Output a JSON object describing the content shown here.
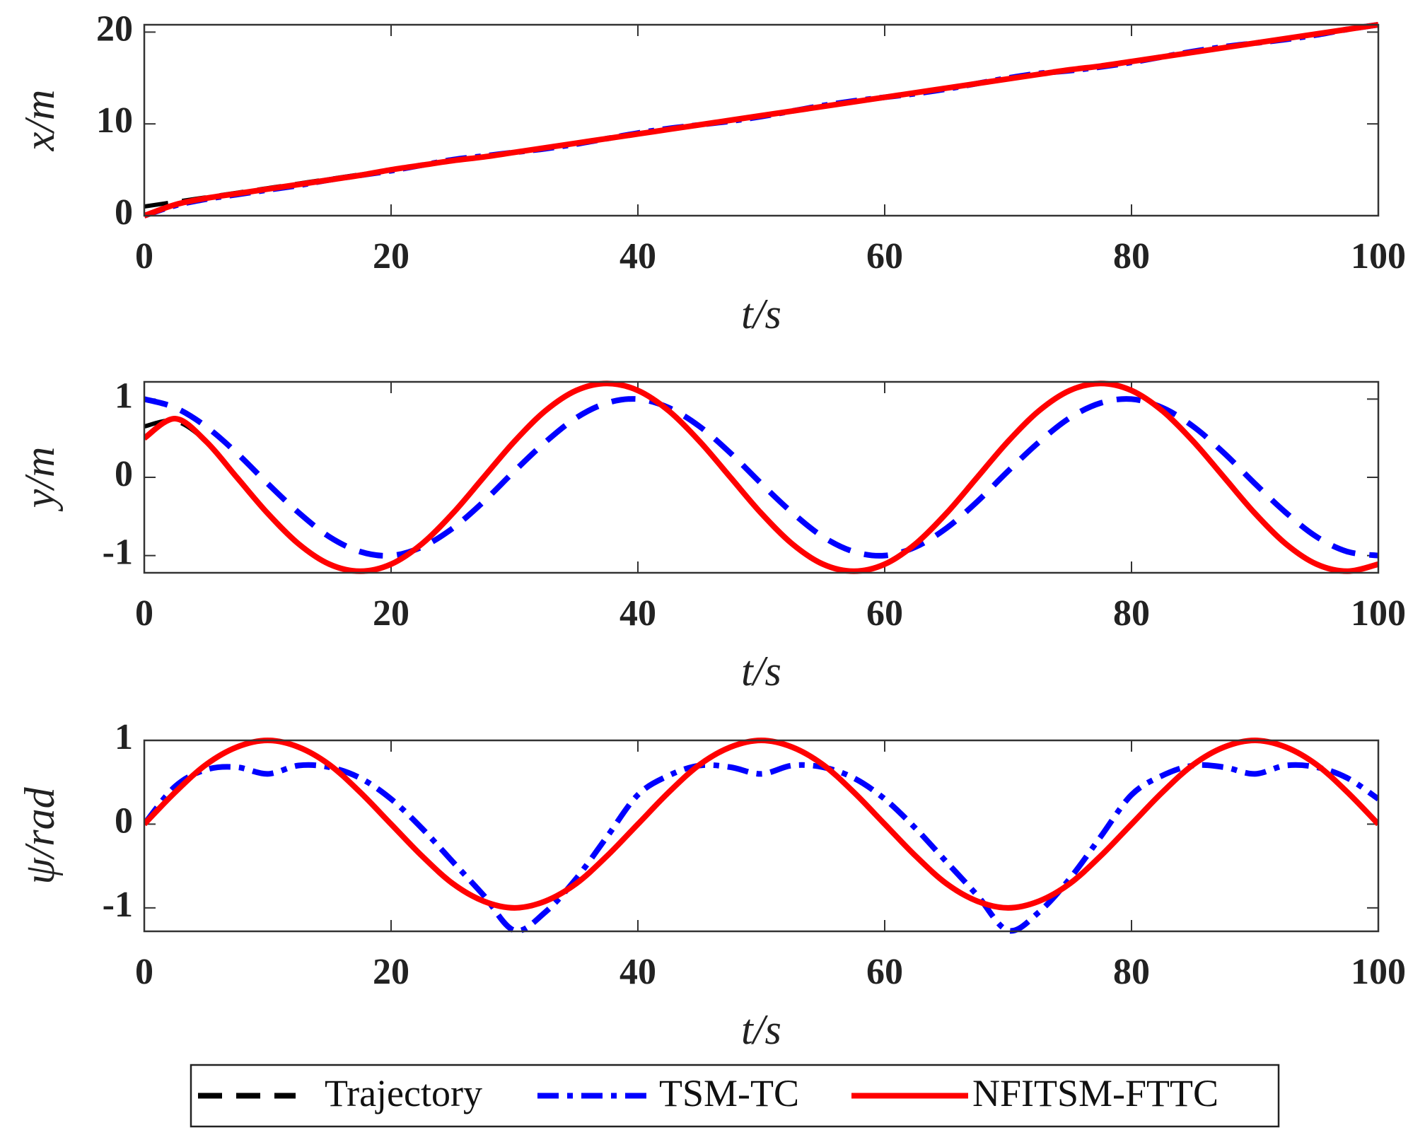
{
  "chart_data": [
    {
      "type": "line",
      "xlabel": "t/s",
      "ylabel": "x/m",
      "x": [
        0,
        2.5,
        5,
        7.5,
        10,
        12.5,
        15,
        17.5,
        20,
        22.5,
        25,
        27.5,
        30,
        32.5,
        35,
        37.5,
        40,
        42.5,
        45,
        47.5,
        50,
        52.5,
        55,
        57.5,
        60,
        62.5,
        65,
        67.5,
        70,
        72.5,
        75,
        77.5,
        80,
        82.5,
        85,
        87.5,
        90,
        92.5,
        95,
        97.5,
        100
      ],
      "xlim": [
        0,
        100
      ],
      "xticks": [
        0,
        20,
        40,
        60,
        80,
        100
      ],
      "ylim": [
        0,
        20.8
      ],
      "yticks": [
        0,
        10,
        20
      ],
      "legend": "below",
      "series": [
        {
          "name": "Trajectory",
          "color": "#000000",
          "style": "dashed",
          "values": [
            1,
            1.5,
            2,
            2.5,
            3,
            3.5,
            4,
            4.5,
            5,
            5.5,
            6,
            6.4,
            6.9,
            7.4,
            7.9,
            8.4,
            8.9,
            9.4,
            9.9,
            10.4,
            10.9,
            11.4,
            11.9,
            12.4,
            12.9,
            13.4,
            13.9,
            14.4,
            14.9,
            15.4,
            15.9,
            16.3,
            16.8,
            17.3,
            17.8,
            18.3,
            18.8,
            19.3,
            19.8,
            20.3,
            20.8
          ]
        },
        {
          "name": "TSM-TC",
          "color": "#0000ff",
          "style": "dashdot",
          "values": [
            0,
            1.1,
            1.8,
            2.3,
            2.8,
            3.3,
            3.9,
            4.4,
            4.9,
            5.5,
            6.1,
            6.5,
            6.9,
            7.3,
            7.8,
            8.4,
            9,
            9.5,
            9.9,
            10.3,
            10.8,
            11.4,
            12,
            12.5,
            12.9,
            13.3,
            13.8,
            14.4,
            15,
            15.5,
            15.8,
            16.2,
            16.7,
            17.3,
            17.9,
            18.4,
            18.8,
            19.2,
            19.7,
            20.3,
            20.8
          ]
        },
        {
          "name": "NFITSM-FTTC",
          "color": "#ff0000",
          "style": "solid",
          "values": [
            0,
            1.2,
            1.9,
            2.4,
            2.9,
            3.4,
            3.9,
            4.4,
            5,
            5.5,
            6,
            6.4,
            6.9,
            7.4,
            7.9,
            8.4,
            8.9,
            9.4,
            9.9,
            10.4,
            10.9,
            11.4,
            11.9,
            12.4,
            12.9,
            13.4,
            13.9,
            14.4,
            14.9,
            15.4,
            15.9,
            16.3,
            16.8,
            17.3,
            17.8,
            18.3,
            18.8,
            19.3,
            19.8,
            20.3,
            20.8
          ]
        }
      ]
    },
    {
      "type": "line",
      "xlabel": "t/s",
      "ylabel": "y/m",
      "x": [
        0,
        2.5,
        5,
        7.5,
        10,
        12.5,
        15,
        17.5,
        20,
        22.5,
        25,
        27.5,
        30,
        32.5,
        35,
        37.5,
        40,
        42.5,
        45,
        47.5,
        50,
        52.5,
        55,
        57.5,
        60,
        62.5,
        65,
        67.5,
        70,
        72.5,
        75,
        77.5,
        80,
        82.5,
        85,
        87.5,
        90,
        92.5,
        95,
        97.5,
        100
      ],
      "xlim": [
        0,
        100
      ],
      "xticks": [
        0,
        20,
        40,
        60,
        80,
        100
      ],
      "ylim": [
        -1.22,
        1.22
      ],
      "yticks": [
        -1,
        0,
        1
      ],
      "series": [
        {
          "name": "Trajectory",
          "color": "#000000",
          "style": "dashed",
          "values": [
            0.65,
            0.72,
            0.46,
            0,
            -0.46,
            -0.85,
            -1.11,
            -1.2,
            -1.11,
            -0.85,
            -0.46,
            0,
            0.46,
            0.85,
            1.11,
            1.2,
            1.11,
            0.85,
            0.46,
            0,
            -0.46,
            -0.85,
            -1.11,
            -1.2,
            -1.11,
            -0.85,
            -0.46,
            0,
            0.46,
            0.85,
            1.11,
            1.2,
            1.11,
            0.85,
            0.46,
            0,
            -0.46,
            -0.85,
            -1.11,
            -1.2,
            -1.11
          ]
        },
        {
          "name": "TSM-TC",
          "color": "#0000ff",
          "style": "dashed",
          "values": [
            1,
            0.89,
            0.65,
            0.31,
            -0.08,
            -0.45,
            -0.76,
            -0.95,
            -1,
            -0.89,
            -0.65,
            -0.31,
            0.08,
            0.45,
            0.76,
            0.95,
            1,
            0.89,
            0.65,
            0.31,
            -0.08,
            -0.45,
            -0.76,
            -0.95,
            -1,
            -0.89,
            -0.65,
            -0.31,
            0.08,
            0.45,
            0.76,
            0.95,
            1,
            0.89,
            0.65,
            0.31,
            -0.08,
            -0.45,
            -0.76,
            -0.95,
            -1
          ]
        },
        {
          "name": "NFITSM-FTTC",
          "color": "#ff0000",
          "style": "solid",
          "values": [
            0.5,
            0.75,
            0.46,
            0,
            -0.46,
            -0.85,
            -1.11,
            -1.2,
            -1.11,
            -0.85,
            -0.46,
            0,
            0.46,
            0.85,
            1.11,
            1.2,
            1.11,
            0.85,
            0.46,
            0,
            -0.46,
            -0.85,
            -1.11,
            -1.2,
            -1.11,
            -0.85,
            -0.46,
            0,
            0.46,
            0.85,
            1.11,
            1.2,
            1.11,
            0.85,
            0.46,
            0,
            -0.46,
            -0.85,
            -1.11,
            -1.2,
            -1.11
          ]
        }
      ]
    },
    {
      "type": "line",
      "xlabel": "t/s",
      "ylabel": "ψ/rad",
      "x": [
        0,
        2.5,
        5,
        7.5,
        10,
        12.5,
        15,
        17.5,
        20,
        22.5,
        25,
        27.5,
        30,
        32.5,
        35,
        37.5,
        40,
        42.5,
        45,
        47.5,
        50,
        52.5,
        55,
        57.5,
        60,
        62.5,
        65,
        67.5,
        70,
        72.5,
        75,
        77.5,
        80,
        82.5,
        85,
        87.5,
        90,
        92.5,
        95,
        97.5,
        100
      ],
      "xlim": [
        0,
        100
      ],
      "xticks": [
        0,
        20,
        40,
        60,
        80,
        100
      ],
      "ylim": [
        -1.28,
        1
      ],
      "yticks": [
        -1,
        0,
        1
      ],
      "series": [
        {
          "name": "Trajectory",
          "color": "#000000",
          "style": "dashed",
          "values": [
            0,
            0.38,
            0.71,
            0.92,
            1,
            0.92,
            0.71,
            0.38,
            0,
            -0.38,
            -0.71,
            -0.92,
            -1,
            -0.92,
            -0.71,
            -0.38,
            0,
            0.38,
            0.71,
            0.92,
            1,
            0.92,
            0.71,
            0.38,
            0,
            -0.38,
            -0.71,
            -0.92,
            -1,
            -0.92,
            -0.71,
            -0.38,
            0,
            0.38,
            0.71,
            0.92,
            1,
            0.92,
            0.71,
            0.38,
            0
          ]
        },
        {
          "name": "TSM-TC",
          "color": "#0000ff",
          "style": "dashdot",
          "values": [
            0,
            0.45,
            0.65,
            0.68,
            0.6,
            0.7,
            0.68,
            0.55,
            0.3,
            -0.05,
            -0.45,
            -0.85,
            -1.27,
            -1.05,
            -0.65,
            -0.15,
            0.35,
            0.58,
            0.7,
            0.68,
            0.6,
            0.7,
            0.68,
            0.55,
            0.3,
            -0.05,
            -0.45,
            -0.85,
            -1.27,
            -1.05,
            -0.65,
            -0.15,
            0.35,
            0.58,
            0.7,
            0.68,
            0.6,
            0.7,
            0.68,
            0.55,
            0.3
          ]
        },
        {
          "name": "NFITSM-FTTC",
          "color": "#ff0000",
          "style": "solid",
          "values": [
            0,
            0.38,
            0.71,
            0.92,
            1,
            0.92,
            0.71,
            0.38,
            0,
            -0.38,
            -0.71,
            -0.92,
            -1,
            -0.92,
            -0.71,
            -0.38,
            0,
            0.38,
            0.71,
            0.92,
            1,
            0.92,
            0.71,
            0.38,
            0,
            -0.38,
            -0.71,
            -0.92,
            -1,
            -0.92,
            -0.71,
            -0.38,
            0,
            0.38,
            0.71,
            0.92,
            1,
            0.92,
            0.71,
            0.38,
            0
          ]
        }
      ]
    }
  ]
}
